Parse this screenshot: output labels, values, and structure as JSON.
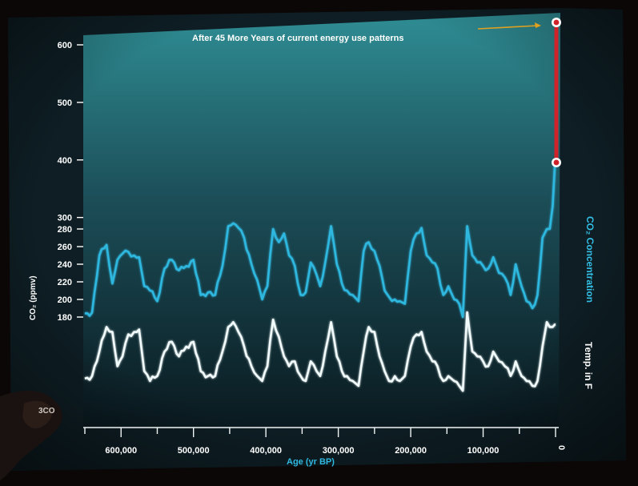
{
  "chart_data": {
    "type": "line",
    "title": "",
    "annotation": "After 45 More Years of current energy use patterns",
    "xlabel": "Age (yr BP)",
    "ylabel": "CO₂ (ppmv)",
    "x_reversed": true,
    "xlim": [
      650000,
      0
    ],
    "ylim": [
      175,
      610
    ],
    "x_ticks": [
      600000,
      500000,
      400000,
      300000,
      200000,
      100000,
      0
    ],
    "x_tick_labels": [
      "600,000",
      "500,000",
      "400,000",
      "300,000",
      "200,000",
      "100,000",
      "0"
    ],
    "y_ticks": [
      180,
      200,
      220,
      240,
      260,
      280,
      300,
      400,
      500,
      600
    ],
    "y_tick_labels": [
      "180",
      "200",
      "220",
      "240",
      "260",
      "280",
      "300",
      "400",
      "500",
      "600"
    ],
    "grid": false,
    "colors": {
      "co2": "#2fb8e0",
      "temp": "#f2fbfb",
      "projection": "#d0222b",
      "annotation_arrow": "#e0a020"
    },
    "series": [
      {
        "name": "CO₂ Concentration",
        "x": [
          650000,
          640000,
          630000,
          620000,
          612000,
          605000,
          598000,
          590000,
          582000,
          575000,
          568000,
          560000,
          550000,
          540000,
          530000,
          520000,
          510000,
          500000,
          490000,
          480000,
          470000,
          460000,
          452000,
          445000,
          438000,
          430000,
          420000,
          412000,
          405000,
          398000,
          390000,
          382000,
          375000,
          368000,
          360000,
          352000,
          345000,
          338000,
          330000,
          325000,
          318000,
          310000,
          302000,
          295000,
          288000,
          280000,
          272000,
          265000,
          258000,
          250000,
          243000,
          236000,
          230000,
          222000,
          215000,
          208000,
          200000,
          192000,
          185000,
          178000,
          170000,
          163000,
          155000,
          148000,
          140000,
          133000,
          128000,
          122000,
          115000,
          108000,
          100000,
          93000,
          86000,
          78000,
          70000,
          62000,
          55000,
          47000,
          40000,
          32000,
          25000,
          18000,
          12000,
          8000,
          4000,
          1000,
          0
        ],
        "values": [
          184,
          185,
          250,
          262,
          218,
          245,
          252,
          254,
          250,
          248,
          215,
          210,
          198,
          235,
          245,
          233,
          238,
          245,
          205,
          208,
          205,
          238,
          285,
          290,
          282,
          270,
          240,
          222,
          200,
          215,
          280,
          265,
          275,
          250,
          238,
          205,
          208,
          242,
          228,
          215,
          242,
          285,
          240,
          218,
          210,
          205,
          198,
          255,
          265,
          255,
          238,
          210,
          203,
          200,
          198,
          195,
          255,
          275,
          282,
          250,
          242,
          235,
          205,
          215,
          200,
          195,
          180,
          285,
          250,
          242,
          238,
          235,
          248,
          230,
          225,
          205,
          240,
          215,
          198,
          190,
          205,
          270,
          280,
          280,
          320,
          390,
          395
        ]
      },
      {
        "name": "Temp. in F",
        "x": [
          650000,
          640000,
          630000,
          620000,
          612000,
          605000,
          598000,
          590000,
          582000,
          575000,
          568000,
          560000,
          550000,
          540000,
          530000,
          520000,
          510000,
          500000,
          490000,
          480000,
          470000,
          460000,
          452000,
          445000,
          438000,
          430000,
          420000,
          412000,
          405000,
          398000,
          390000,
          382000,
          375000,
          368000,
          360000,
          352000,
          345000,
          338000,
          330000,
          325000,
          318000,
          310000,
          302000,
          295000,
          288000,
          280000,
          272000,
          265000,
          258000,
          250000,
          243000,
          236000,
          230000,
          222000,
          215000,
          208000,
          200000,
          192000,
          185000,
          178000,
          170000,
          163000,
          155000,
          148000,
          140000,
          133000,
          128000,
          122000,
          115000,
          108000,
          100000,
          93000,
          86000,
          78000,
          70000,
          62000,
          55000,
          47000,
          40000,
          32000,
          25000,
          18000,
          12000,
          8000,
          4000,
          1000,
          0
        ],
        "values": [
          -8.5,
          -8,
          -3,
          2,
          1,
          -6,
          -4,
          0.5,
          1,
          1.5,
          -7,
          -9,
          -8,
          -3,
          -1,
          -4,
          -2,
          -1,
          -7,
          -8,
          -8,
          -3,
          2,
          3,
          1,
          -2,
          -6,
          -8,
          -9,
          -6,
          3.5,
          0,
          -4,
          -6,
          -5,
          -8,
          -9,
          -5,
          -7,
          -8,
          -3,
          3,
          -4,
          -7,
          -8,
          -9,
          -10,
          -3,
          2,
          1,
          -4,
          -7,
          -9,
          -8,
          -9,
          -8,
          -2,
          0.5,
          1,
          -3,
          -5,
          -6,
          -9,
          -8,
          -9,
          -10,
          -11,
          5,
          -3,
          -4,
          -5,
          -6,
          -3,
          -5,
          -6,
          -8,
          -5,
          -8,
          -9,
          -10,
          -9,
          -2,
          3,
          2,
          2,
          2.5,
          2.5
        ]
      }
    ],
    "projection": {
      "label": "After 45 More Years of current energy use patterns",
      "x": 0,
      "from": 390,
      "to": 600
    },
    "right_labels": [
      "CO₂ Concentration",
      "Temp. in F"
    ],
    "overlay_text": [
      "3CO"
    ]
  }
}
